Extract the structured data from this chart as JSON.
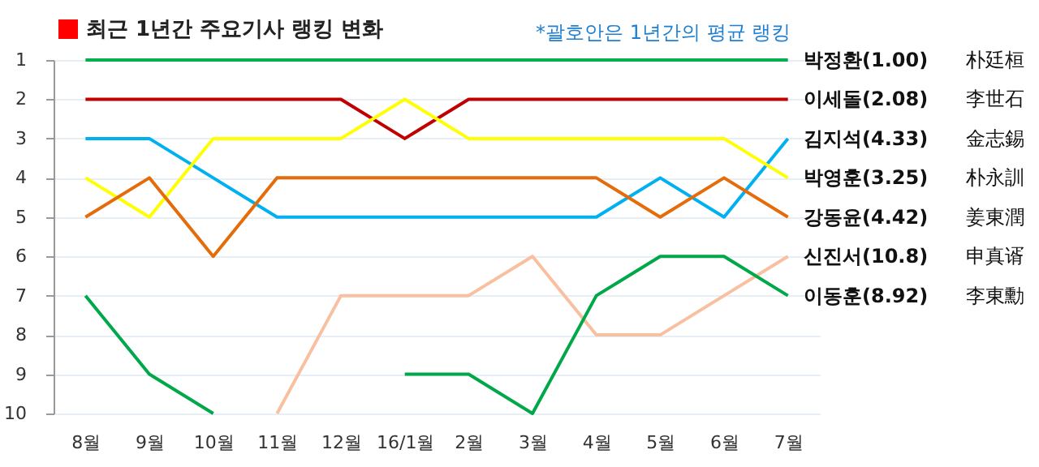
{
  "chart_data": {
    "type": "line",
    "title": "최근 1년간 주요기사 랭킹 변화",
    "subtitle": "*괄호안은 1년간의 평균 랭킹",
    "categories": [
      "8월",
      "9월",
      "10월",
      "11월",
      "12월",
      "16/1월",
      "2월",
      "3월",
      "4월",
      "5월",
      "6월",
      "7월"
    ],
    "series": [
      {
        "name": "박정환(1.00)",
        "color": "#00b050",
        "values": [
          1,
          1,
          1,
          1,
          1,
          1,
          1,
          1,
          1,
          1,
          1,
          1
        ]
      },
      {
        "name": "이세돌(2.08)",
        "color": "#c00000",
        "values": [
          2,
          2,
          2,
          2,
          2,
          3,
          2,
          2,
          2,
          2,
          2,
          2
        ]
      },
      {
        "name": "김지석(4.33)",
        "color": "#00b0f0",
        "values": [
          3,
          3,
          4,
          5,
          5,
          5,
          5,
          5,
          5,
          4,
          5,
          3
        ]
      },
      {
        "name": "박영훈(3.25)",
        "color": "#ffff00",
        "values": [
          4,
          5,
          3,
          3,
          3,
          2,
          3,
          3,
          3,
          3,
          3,
          4
        ]
      },
      {
        "name": "강동윤(4.42)",
        "color": "#e46c0a",
        "values": [
          5,
          4,
          6,
          4,
          4,
          4,
          4,
          4,
          4,
          5,
          4,
          5
        ]
      },
      {
        "name": "신진서(10.8)",
        "color": "#f8c0a0",
        "values": [
          null,
          null,
          null,
          10,
          7,
          7,
          7,
          6,
          8,
          8,
          7,
          6
        ]
      },
      {
        "name": "이동훈(8.92)",
        "color": "#00a84a",
        "values": [
          7,
          9,
          10,
          null,
          null,
          9,
          9,
          10,
          7,
          6,
          6,
          7
        ]
      }
    ],
    "annotations": [
      "朴廷桓",
      "李世石",
      "金志錫",
      "朴永訓",
      "姜東潤",
      "申真谞",
      "李東勳"
    ],
    "ylim": [
      10,
      1
    ],
    "yticks": [
      1,
      2,
      3,
      4,
      5,
      6,
      7,
      8,
      9,
      10
    ],
    "grid": "y",
    "legend": false,
    "marker": "none",
    "line_style": "solid"
  }
}
